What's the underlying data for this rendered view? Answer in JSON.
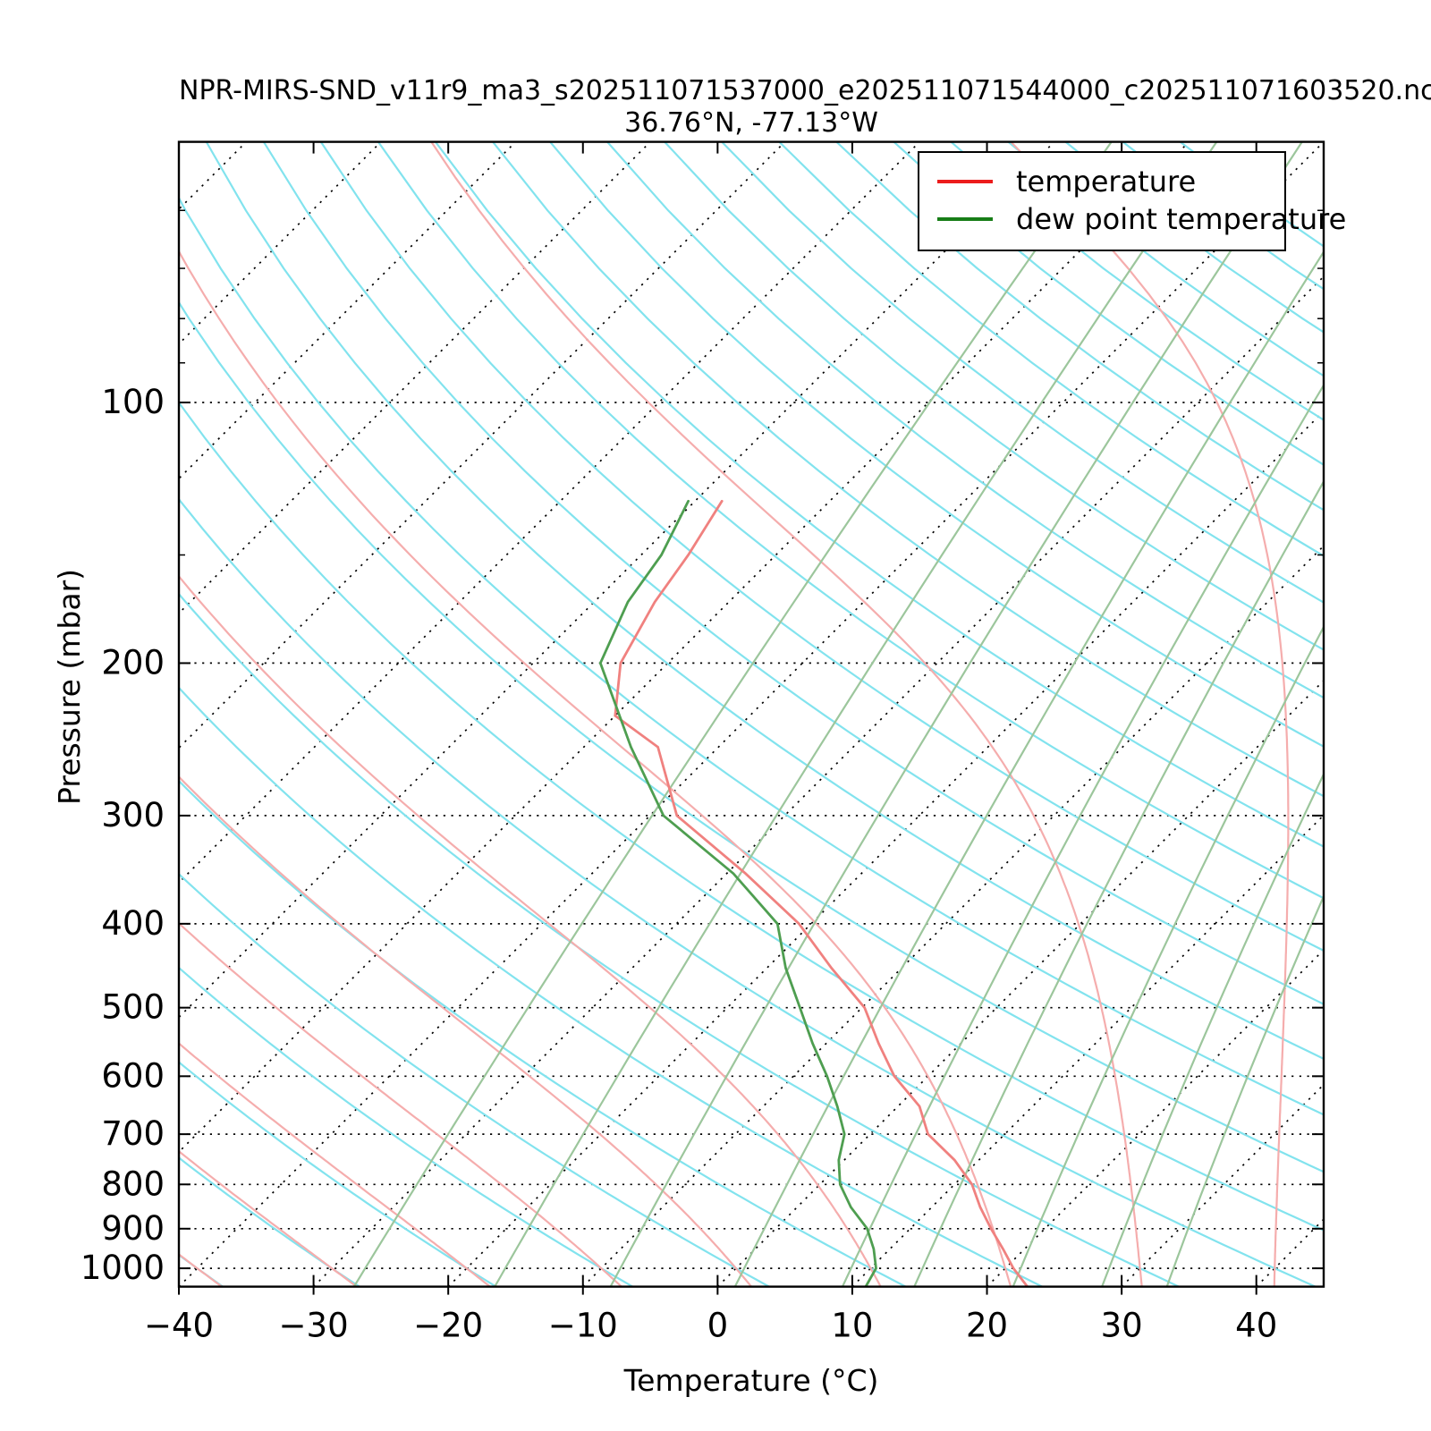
{
  "figure": {
    "title": "NPR-MIRS-SND_v11r9_ma3_s202511071537000_e202511071544000_c202511071603520.nc",
    "subtitle": "36.76°N, -77.13°W"
  },
  "legend": {
    "position": "upper right",
    "items": [
      {
        "label": "temperature",
        "color": "#ec1c1c"
      },
      {
        "label": "dew point temperature",
        "color": "#177d17"
      }
    ]
  },
  "chart_data": {
    "type": "line",
    "variant": "skew-T log-P sounding",
    "title": "NPR-MIRS-SND_v11r9_ma3_s202511071537000_e202511071544000_c202511071603520.nc",
    "subtitle": "36.76°N, -77.13°W",
    "xlabel": "Temperature (°C)",
    "ylabel": "Pressure (mbar)",
    "x_ticks": [
      -40,
      -30,
      -20,
      -10,
      0,
      10,
      20,
      30,
      40
    ],
    "y_ticks": [
      100,
      200,
      300,
      400,
      500,
      600,
      700,
      800,
      900,
      1000
    ],
    "y_minor_ticks": [
      60,
      70,
      80,
      90,
      150
    ],
    "xlim": [
      -40,
      45
    ],
    "ylim": [
      1050,
      50
    ],
    "y_scale": "log",
    "skew_deg": 45,
    "grid": true,
    "frame_color": "#000000",
    "series": [
      {
        "name": "temperature",
        "color": "#f0817f",
        "points_p_T": [
          [
            1050,
            23.0
          ],
          [
            1000,
            20.6
          ],
          [
            950,
            18.4
          ],
          [
            900,
            16.0
          ],
          [
            850,
            13.6
          ],
          [
            800,
            11.3
          ],
          [
            750,
            8.2
          ],
          [
            700,
            4.3
          ],
          [
            650,
            1.6
          ],
          [
            600,
            -2.5
          ],
          [
            550,
            -6.1
          ],
          [
            500,
            -9.8
          ],
          [
            450,
            -15.2
          ],
          [
            400,
            -20.9
          ],
          [
            350,
            -28.6
          ],
          [
            300,
            -38.0
          ],
          [
            250,
            -44.5
          ],
          [
            230,
            -50.0
          ],
          [
            200,
            -53.5
          ],
          [
            170,
            -55.5
          ],
          [
            150,
            -56.5
          ],
          [
            130,
            -58.0
          ]
        ]
      },
      {
        "name": "dew point temperature",
        "color": "#4e9e50",
        "points_p_T": [
          [
            1050,
            11.0
          ],
          [
            1000,
            10.4
          ],
          [
            950,
            8.8
          ],
          [
            900,
            6.8
          ],
          [
            850,
            4.0
          ],
          [
            800,
            1.5
          ],
          [
            750,
            -0.4
          ],
          [
            700,
            -1.9
          ],
          [
            650,
            -4.5
          ],
          [
            600,
            -7.5
          ],
          [
            550,
            -11.0
          ],
          [
            500,
            -14.6
          ],
          [
            450,
            -18.6
          ],
          [
            400,
            -22.5
          ],
          [
            350,
            -29.5
          ],
          [
            300,
            -39.0
          ],
          [
            250,
            -46.5
          ],
          [
            200,
            -55.0
          ],
          [
            170,
            -57.5
          ],
          [
            150,
            -58.5
          ],
          [
            130,
            -60.5
          ]
        ]
      }
    ],
    "background_lines": {
      "isotherms_c": {
        "start": -150,
        "end": 40,
        "step": 10,
        "color": "#000000",
        "style": "dotted"
      },
      "pressure_levels_mbar": {
        "start": 100,
        "end": 1000,
        "step": 100,
        "color": "#000000",
        "style": "dotted"
      },
      "dry_adiabats_theta_c": {
        "start": -40,
        "end": 250,
        "step": 10,
        "color": "#82e3ee",
        "style": "solid"
      },
      "moist_adiabats_thetaw_c": {
        "start": -40,
        "end": 40,
        "step": 10,
        "color": "#f5adad",
        "style": "solid"
      },
      "mixing_ratio_g_kg": {
        "values": [
          0.4,
          1,
          2,
          4,
          7,
          10,
          16,
          24,
          32
        ],
        "color": "#9cc69c",
        "style": "solid"
      }
    }
  }
}
